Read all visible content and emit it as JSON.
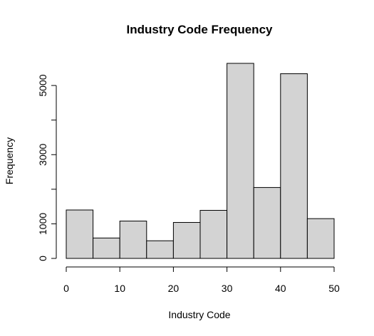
{
  "chart_data": {
    "type": "bar",
    "title": "Industry Code Frequency",
    "xlabel": "Industry Code",
    "ylabel": "Frequency",
    "bins": [
      {
        "x0": 0,
        "x1": 5,
        "value": 1400
      },
      {
        "x0": 5,
        "x1": 10,
        "value": 590
      },
      {
        "x0": 10,
        "x1": 15,
        "value": 1080
      },
      {
        "x0": 15,
        "x1": 20,
        "value": 510
      },
      {
        "x0": 20,
        "x1": 25,
        "value": 1040
      },
      {
        "x0": 25,
        "x1": 30,
        "value": 1390
      },
      {
        "x0": 30,
        "x1": 35,
        "value": 5640
      },
      {
        "x0": 35,
        "x1": 40,
        "value": 2050
      },
      {
        "x0": 40,
        "x1": 45,
        "value": 5340
      },
      {
        "x0": 45,
        "x1": 50,
        "value": 1150
      }
    ],
    "xlim": [
      0,
      50
    ],
    "ylim": [
      0,
      5640
    ],
    "x_ticks": [
      "0",
      "10",
      "20",
      "30",
      "40",
      "50"
    ],
    "y_ticks": [
      "0",
      "1000",
      "3000",
      "5000"
    ],
    "bar_color": "#d3d3d3",
    "edge_color": "#000000",
    "grid": false,
    "legend": "none"
  }
}
